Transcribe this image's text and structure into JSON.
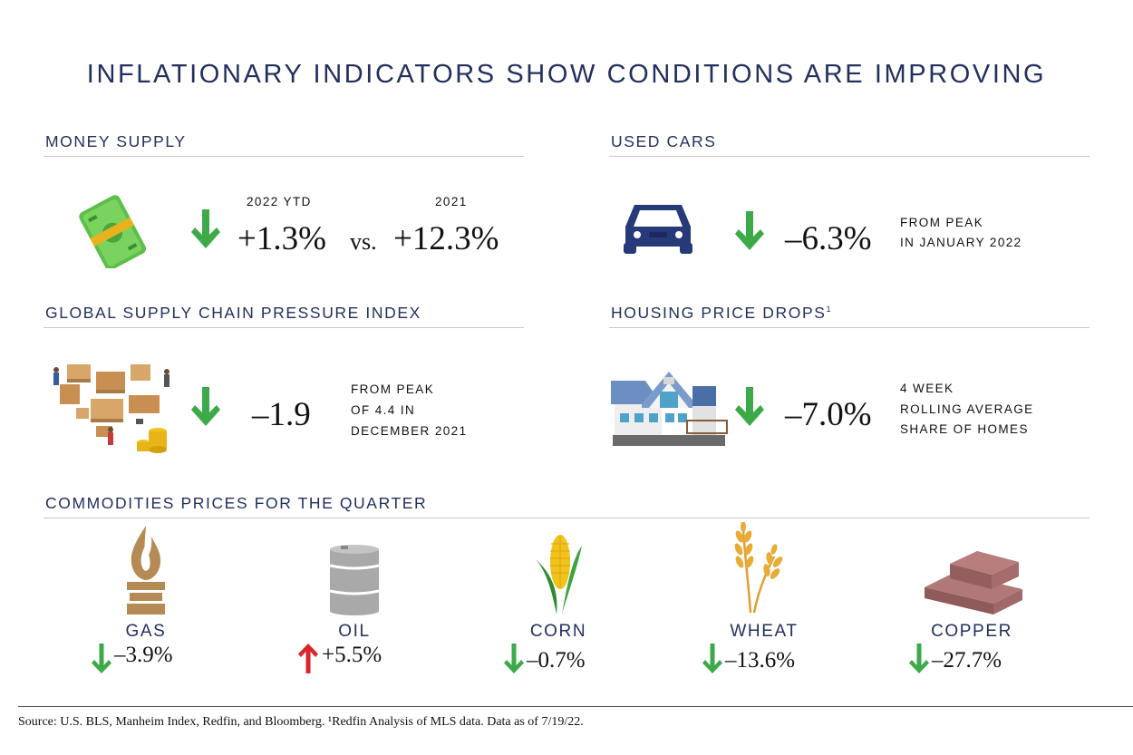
{
  "title": "INFLATIONARY INDICATORS SHOW CONDITIONS ARE IMPROVING",
  "colors": {
    "navy": "#23305e",
    "down_arrow": "#3daa4a",
    "up_arrow": "#d9262c"
  },
  "money_supply": {
    "heading": "MONEY SUPPLY",
    "icon": "money-roll-icon",
    "label_ytd": "2022 YTD",
    "label_prev": "2021",
    "value_ytd": "+1.3%",
    "vs": "vs.",
    "value_prev": "+12.3%",
    "direction": "down"
  },
  "used_cars": {
    "heading": "USED CARS",
    "icon": "car-icon",
    "value": "–6.3%",
    "note_line1": "FROM PEAK",
    "note_line2": "IN JANUARY 2022",
    "direction": "down"
  },
  "supply_chain": {
    "heading": "GLOBAL SUPPLY CHAIN PRESSURE INDEX",
    "icon": "warehouse-icon",
    "value": "–1.9",
    "note_line1": "FROM PEAK",
    "note_line2": "OF 4.4 IN",
    "note_line3": "DECEMBER 2021",
    "direction": "down"
  },
  "housing": {
    "heading": "HOUSING PRICE DROPS",
    "heading_sup": "1",
    "icon": "house-icon",
    "value": "–7.0%",
    "note_line1": "4 WEEK",
    "note_line2": "ROLLING AVERAGE",
    "note_line3": "SHARE OF HOMES",
    "direction": "down"
  },
  "commodities": {
    "heading": "COMMODITIES PRICES FOR THE QUARTER",
    "items": [
      {
        "name": "GAS",
        "value": "–3.9%",
        "direction": "down",
        "icon": "gas-flame-icon"
      },
      {
        "name": "OIL",
        "value": "+5.5%",
        "direction": "up",
        "icon": "oil-barrel-icon"
      },
      {
        "name": "CORN",
        "value": "–0.7%",
        "direction": "down",
        "icon": "corn-icon"
      },
      {
        "name": "WHEAT",
        "value": "–13.6%",
        "direction": "down",
        "icon": "wheat-icon"
      },
      {
        "name": "COPPER",
        "value": "–27.7%",
        "direction": "down",
        "icon": "copper-bars-icon"
      }
    ]
  },
  "source": "Source: U.S. BLS, Manheim Index, Redfin, and Bloomberg. ¹Redfin Analysis of MLS data. Data as of 7/19/22."
}
